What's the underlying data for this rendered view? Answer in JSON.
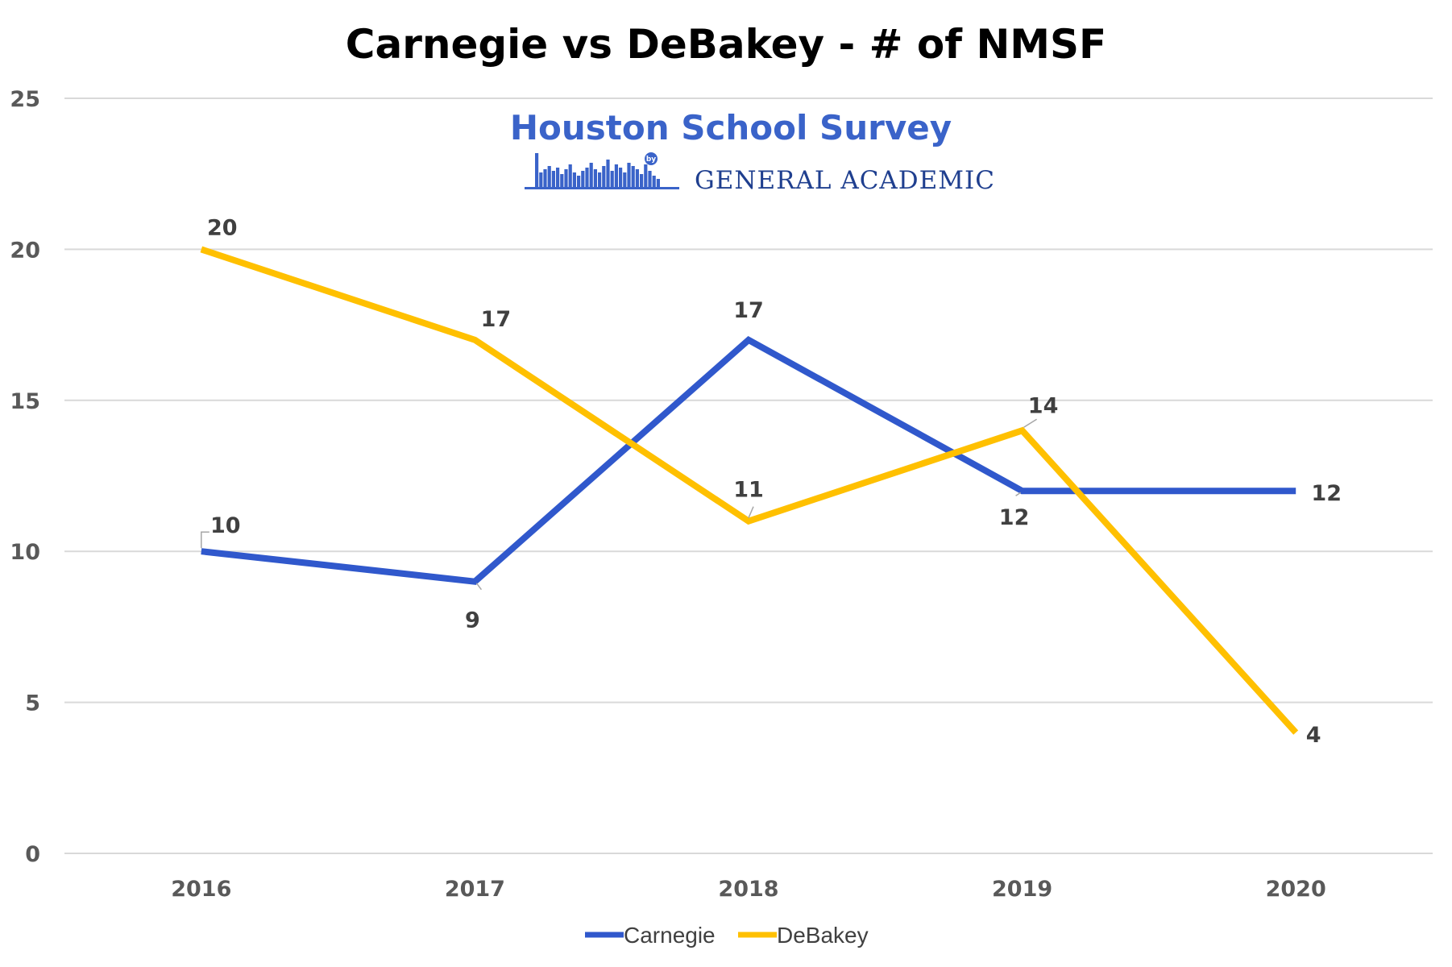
{
  "chart_data": {
    "type": "line",
    "title": "Carnegie vs DeBakey - # of NMSF",
    "xlabel": "",
    "ylabel": "",
    "categories": [
      "2016",
      "2017",
      "2018",
      "2019",
      "2020"
    ],
    "ylim": [
      0,
      25
    ],
    "yticks": [
      0,
      5,
      10,
      15,
      20,
      25
    ],
    "grid": true,
    "legend_position": "bottom",
    "series": [
      {
        "name": "Carnegie",
        "color": "#3058cc",
        "values": [
          10,
          9,
          17,
          12,
          12
        ]
      },
      {
        "name": "DeBakey",
        "color": "#ffc000",
        "values": [
          20,
          17,
          11,
          14,
          4
        ]
      }
    ]
  },
  "logo": {
    "title": "Houston School Survey",
    "by": "by",
    "subtitle": "GENERAL ACADEMIC",
    "color": "#3a63c9",
    "sub_color": "#1f3f8f"
  }
}
